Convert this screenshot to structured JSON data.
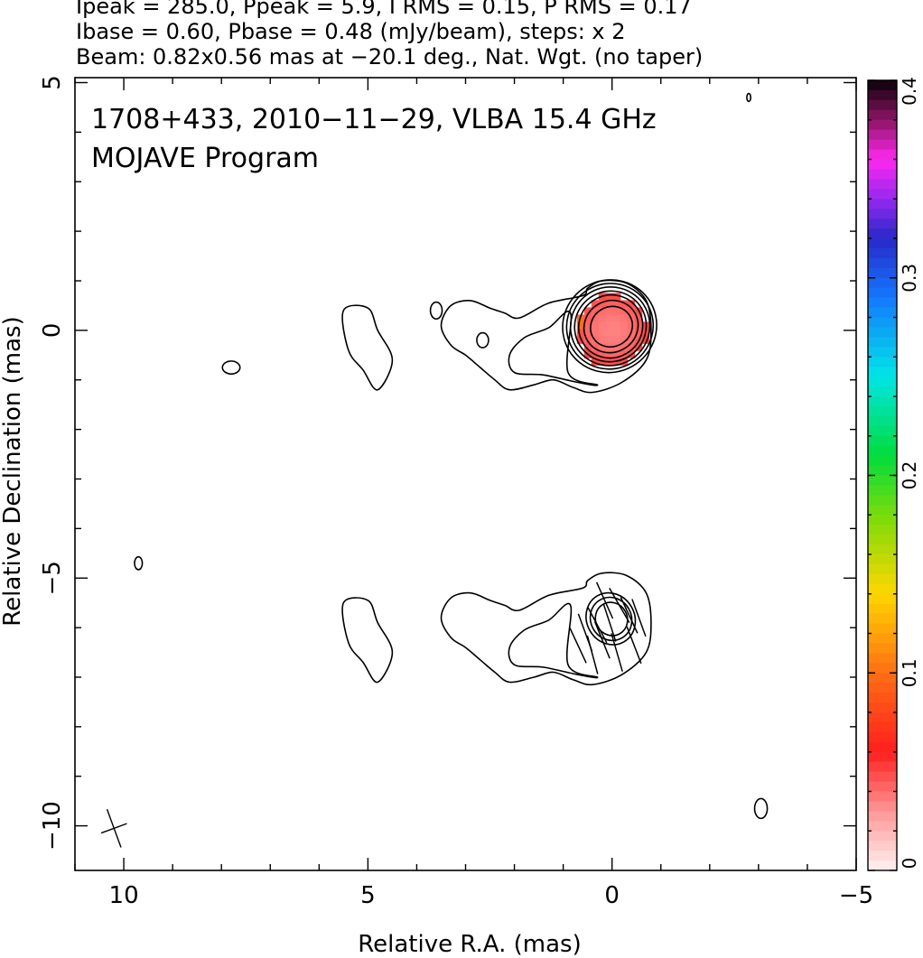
{
  "header": {
    "line1": "Ipeak = 285.0, Ppeak = 5.9, I RMS = 0.15, P RMS = 0.17",
    "line2": "Ibase = 0.60, Pbase = 0.48 (mJy/beam), steps: x 2",
    "line3": "Beam: 0.82x0.56 mas at −20.1 deg., Nat. Wgt. (no taper)"
  },
  "annotation": {
    "line1": "1708+433, 2010−11−29, VLBA 15.4 GHz",
    "line2": "MOJAVE Program"
  },
  "chart_data": {
    "type": "contour",
    "source": "1708+433",
    "date": "2010-11-29",
    "instrument": "VLBA 15.4 GHz",
    "xlabel": "Relative R.A. (mas)",
    "ylabel": "Relative Declination (mas)",
    "xlim": [
      11,
      -5
    ],
    "ylim": [
      -10.9,
      5.1
    ],
    "x_ticks": [
      10,
      5,
      0,
      -5
    ],
    "x_tick_labels": [
      "10",
      "5",
      "0",
      "−5"
    ],
    "y_ticks": [
      5,
      0,
      -5,
      -10
    ],
    "y_tick_labels": [
      "5",
      "0",
      "−5",
      "−10"
    ],
    "colorbar": {
      "range": [
        0,
        0.4
      ],
      "ticks": [
        0,
        0.1,
        0.2,
        0.3,
        0.4
      ],
      "tick_labels": [
        "0",
        "0.1",
        "0.2",
        "0.3",
        "0.4"
      ]
    },
    "stats": {
      "Ipeak": 285.0,
      "Ppeak": 5.9,
      "I_RMS": 0.15,
      "P_RMS": 0.17,
      "Ibase": 0.6,
      "Pbase": 0.48,
      "unit": "mJy/beam",
      "contour_step": 2
    },
    "beam": {
      "major": 0.82,
      "minor": 0.56,
      "pa_deg": -20.1,
      "weighting": "Nat. Wgt. (no taper)"
    },
    "core_offset_lower_panel": -5.9,
    "contour_levels": [
      {
        "rx": 0.45,
        "ry": 0.4
      },
      {
        "rx": 0.58,
        "ry": 0.52
      },
      {
        "rx": 0.68,
        "ry": 0.63
      },
      {
        "rx": 0.76,
        "ry": 0.71
      },
      {
        "rx": 0.84,
        "ry": 0.79
      },
      {
        "rx": 0.92,
        "ry": 0.86
      },
      {
        "rx": 1.0,
        "ry": 0.93
      }
    ],
    "outer_contour": [
      [
        0.6,
        0.7
      ],
      [
        1.3,
        0.55
      ],
      [
        1.9,
        0.25
      ],
      [
        2.2,
        0.35
      ],
      [
        2.5,
        0.45
      ],
      [
        2.9,
        0.6
      ],
      [
        3.3,
        0.5
      ],
      [
        3.5,
        0.1
      ],
      [
        3.3,
        -0.3
      ],
      [
        3.0,
        -0.5
      ],
      [
        2.7,
        -0.75
      ],
      [
        2.4,
        -1.0
      ],
      [
        2.1,
        -1.2
      ],
      [
        1.6,
        -1.1
      ],
      [
        1.2,
        -1.0
      ],
      [
        0.8,
        -1.15
      ],
      [
        0.4,
        -1.25
      ],
      [
        -0.2,
        -1.05
      ],
      [
        -0.7,
        -0.6
      ],
      [
        -0.8,
        0.0
      ],
      [
        -0.7,
        0.6
      ],
      [
        -0.3,
        0.95
      ],
      [
        0.2,
        1.0
      ],
      [
        0.5,
        0.85
      ]
    ],
    "mid_contour": [
      [
        0.85,
        0.35
      ],
      [
        1.3,
        0.05
      ],
      [
        1.8,
        -0.15
      ],
      [
        2.1,
        -0.5
      ],
      [
        2.0,
        -0.85
      ],
      [
        1.4,
        -0.9
      ],
      [
        0.7,
        -1.05
      ],
      [
        0.3,
        -1.1
      ],
      [
        0.9,
        -0.85
      ]
    ],
    "blob_knot": [
      [
        5.5,
        0.4
      ],
      [
        5.0,
        0.45
      ],
      [
        4.8,
        0.0
      ],
      [
        4.5,
        -0.6
      ],
      [
        4.8,
        -1.2
      ],
      [
        5.1,
        -0.8
      ],
      [
        5.4,
        -0.4
      ]
    ],
    "small_blobs": [
      {
        "x": 3.6,
        "y": 0.4,
        "rx": 0.12,
        "ry": 0.17
      },
      {
        "x": 2.65,
        "y": -0.2,
        "rx": 0.12,
        "ry": 0.15
      },
      {
        "x": 7.8,
        "y": -0.75,
        "rx": 0.18,
        "ry": 0.13
      },
      {
        "x": 9.7,
        "y": -4.7,
        "rx": 0.08,
        "ry": 0.13
      },
      {
        "x": -3.05,
        "y": -9.65,
        "rx": 0.13,
        "ry": 0.2
      },
      {
        "x": -2.8,
        "y": 4.7,
        "rx": 0.04,
        "ry": 0.08
      }
    ],
    "polarization_patch": {
      "center": [
        0.0,
        0.0
      ],
      "rx": 0.72,
      "ry": 0.72,
      "fraction_value": 0.05,
      "edge_value": 0.18
    },
    "evpa_vectors": [
      {
        "x": -0.55,
        "y": -5.8,
        "angle": 70
      },
      {
        "x": -0.35,
        "y": -5.75,
        "angle": 65
      },
      {
        "x": -0.15,
        "y": -5.55,
        "angle": 60
      },
      {
        "x": 0.05,
        "y": -5.9,
        "angle": 72
      },
      {
        "x": 0.2,
        "y": -6.25,
        "angle": 68
      },
      {
        "x": 0.4,
        "y": -6.55,
        "angle": 75
      },
      {
        "x": 0.55,
        "y": -6.1,
        "angle": 70
      },
      {
        "x": 0.7,
        "y": -6.35,
        "angle": 65
      },
      {
        "x": 0.3,
        "y": -5.95,
        "angle": 62
      },
      {
        "x": -0.1,
        "y": -6.5,
        "angle": 74
      },
      {
        "x": 0.15,
        "y": -5.45,
        "angle": 66
      },
      {
        "x": -0.45,
        "y": -6.35,
        "angle": 69
      }
    ]
  }
}
